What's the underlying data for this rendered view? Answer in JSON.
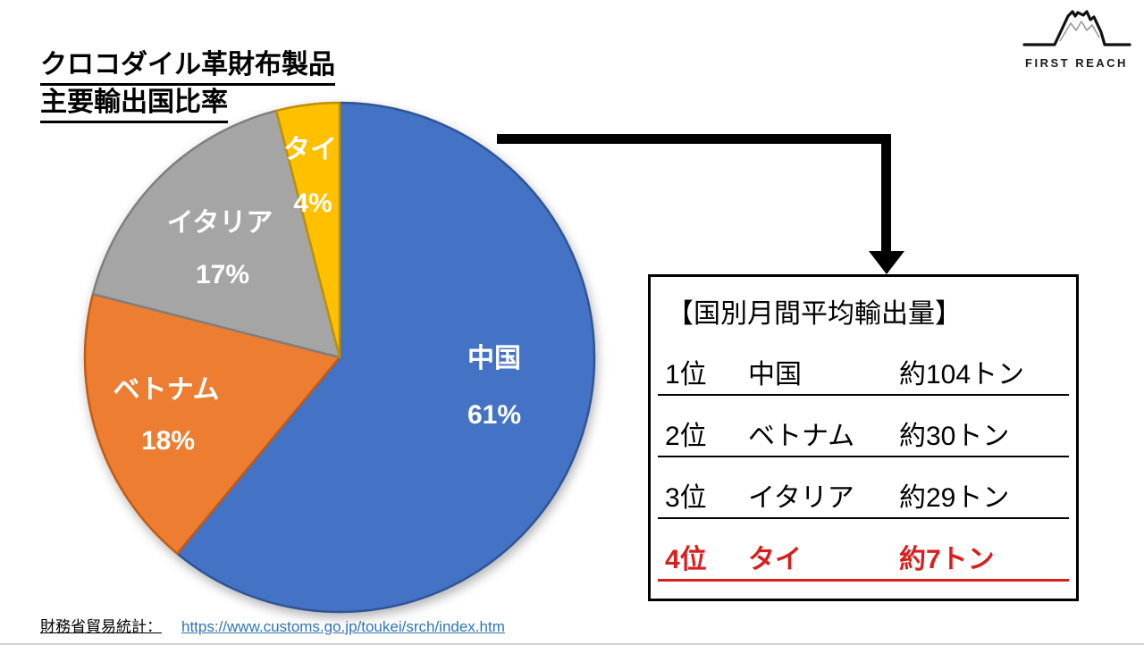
{
  "title": {
    "line1": "クロコダイル革財布製品",
    "line2": "主要輸出国比率"
  },
  "logo": {
    "text": "FIRST REACH"
  },
  "chart_data": {
    "type": "pie",
    "title": "クロコダイル革財布製品 主要輸出国比率",
    "start_angle_deg": 0,
    "direction": "clockwise",
    "label_color": "#FFFFFF",
    "slices": [
      {
        "label": "中国",
        "value": 61,
        "display": "61%",
        "color": "#4472C4",
        "border": "#2F5597"
      },
      {
        "label": "ベトナム",
        "value": 18,
        "display": "18%",
        "color": "#ED7D31",
        "border": "#C55A11"
      },
      {
        "label": "イタリア",
        "value": 17,
        "display": "17%",
        "color": "#A5A5A5",
        "border": "#7F7F7F"
      },
      {
        "label": "タイ",
        "value": 4,
        "display": "4%",
        "color": "#FFC000",
        "border": "#BF9000"
      }
    ]
  },
  "info_box": {
    "heading": "【国別月間平均輸出量】",
    "highlight_color": "#D91E1E",
    "rows": [
      {
        "rank": "1位",
        "country": "中国",
        "amount": "約104トン",
        "highlight": false
      },
      {
        "rank": "2位",
        "country": "ベトナム",
        "amount": "約30トン",
        "highlight": false
      },
      {
        "rank": "3位",
        "country": "イタリア",
        "amount": "約29トン",
        "highlight": false
      },
      {
        "rank": "4位",
        "country": "タイ",
        "amount": "約7トン",
        "highlight": true
      }
    ]
  },
  "source": {
    "label": "財務省貿易統計：",
    "url_text": "https://www.customs.go.jp/toukei/srch/index.htm",
    "link_color": "#2E75B6"
  }
}
